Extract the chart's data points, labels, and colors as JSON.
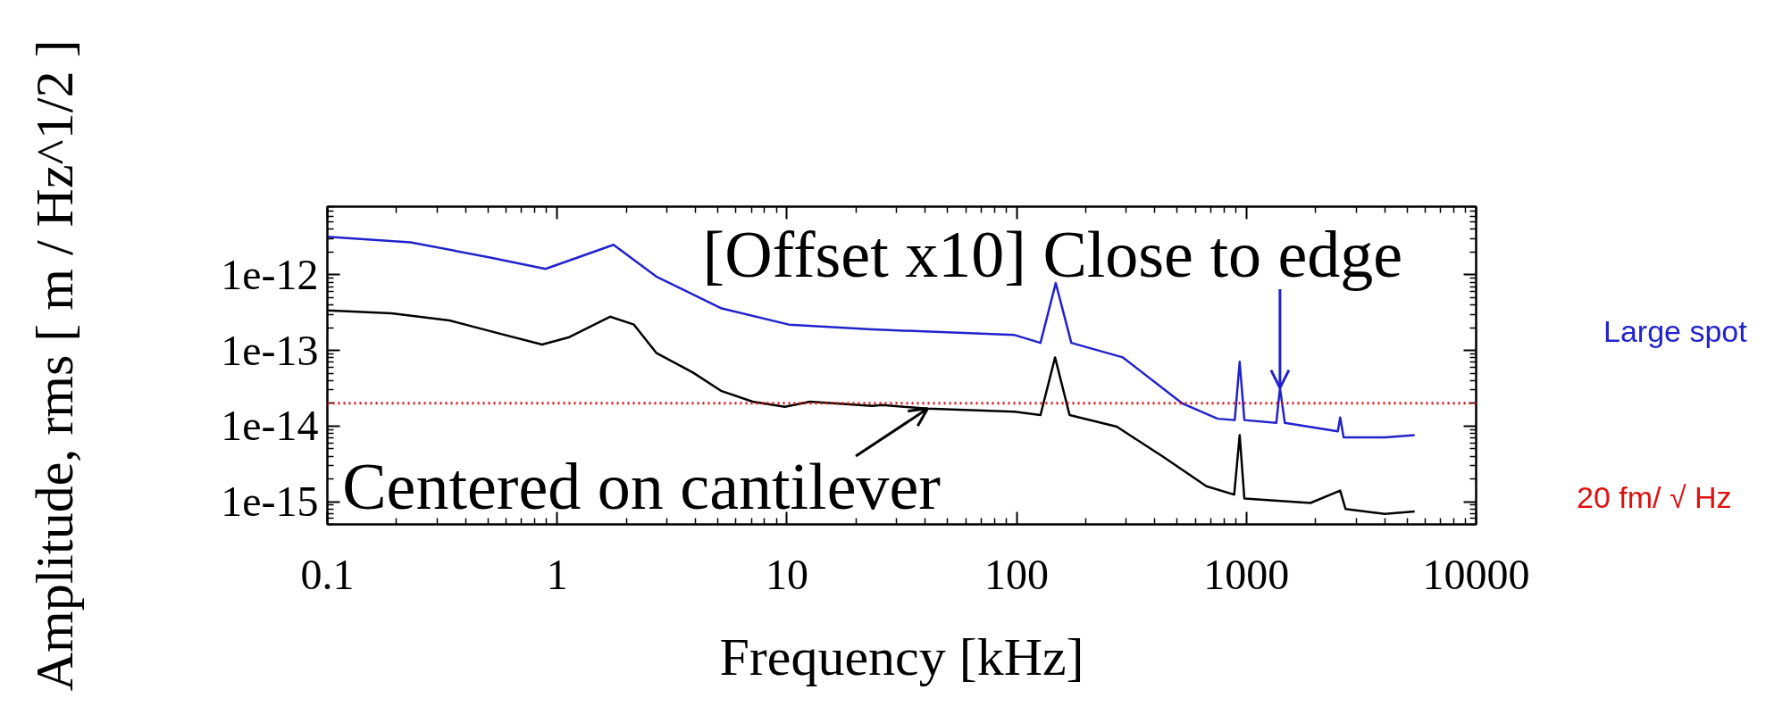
{
  "chart_data": {
    "type": "line",
    "xlabel": "Frequency [kHz]",
    "ylabel": "Amplitude, rms [ m / Hz^1/2 ]",
    "log": "xy",
    "xlim": [
      0.1,
      10000
    ],
    "xticks": [
      0.1,
      1,
      10,
      100,
      1000,
      10000
    ],
    "ylim": [
      5e-16,
      8e-12
    ],
    "yticks": [
      {
        "value": 1e-15,
        "label": "1e-15"
      },
      {
        "value": 1e-14,
        "label": "1e-14"
      },
      {
        "value": 1e-13,
        "label": "1e-13"
      },
      {
        "value": 1e-12,
        "label": "1e-12"
      }
    ],
    "grid": false,
    "line_style": "solid",
    "marker": "none",
    "series": [
      {
        "name": "Large spot",
        "color": "#2222cc",
        "x": [
          0.1,
          0.23,
          0.51,
          0.89,
          1.76,
          2.7,
          5.2,
          10.2,
          23.5,
          98,
          127,
          148,
          173,
          290,
          525,
          750,
          890,
          935,
          980,
          1350,
          1400,
          1470,
          2500,
          2560,
          2650,
          4000,
          5400
        ],
        "values": [
          3.2e-12,
          2.7e-12,
          1.7e-12,
          1.2e-12,
          2.5e-12,
          9.5e-13,
          3.6e-13,
          2.2e-13,
          1.9e-13,
          1.6e-13,
          1.26e-13,
          7.8e-13,
          1.26e-13,
          8.1e-14,
          2e-14,
          1.25e-14,
          1.2e-14,
          7.1e-14,
          1.2e-14,
          1.1e-14,
          3.2e-14,
          1.1e-14,
          8.5e-15,
          1.3e-14,
          7.1e-15,
          7.1e-15,
          7.6e-15
        ]
      },
      {
        "color": "#000000",
        "x": [
          0.1,
          0.19,
          0.34,
          0.55,
          0.86,
          1.13,
          1.7,
          2.16,
          2.7,
          3.9,
          5.2,
          7.1,
          9.8,
          12.6,
          23.5,
          26,
          41,
          98,
          127,
          147,
          170,
          273,
          430,
          670,
          885,
          935,
          980,
          1900,
          2560,
          2700,
          4000,
          5400
        ],
        "values": [
          3.4e-13,
          3.1e-13,
          2.5e-13,
          1.7e-13,
          1.2e-13,
          1.5e-13,
          2.8e-13,
          2.2e-13,
          9.3e-14,
          5.1e-14,
          2.9e-14,
          2.1e-14,
          1.8e-14,
          2.1e-14,
          1.85e-14,
          1.9e-14,
          1.7e-14,
          1.55e-14,
          1.4e-14,
          8.1e-14,
          1.4e-14,
          9.8e-15,
          4e-15,
          1.6e-15,
          1.24e-15,
          7.6e-15,
          1.1e-15,
          9.6e-16,
          1.4e-15,
          8e-16,
          6.9e-16,
          7.4e-16
        ]
      }
    ],
    "ref_lines": [
      {
        "axis": "y",
        "value": 2e-14,
        "label": "20 fm/ √ Hz",
        "color": "#dd1111",
        "line_style": "dotted"
      }
    ],
    "annotations": [
      {
        "text": "[Offset x10] Close to edge",
        "x": 1400,
        "y": 3.2e-14
      },
      {
        "text": "Centered on cantilever",
        "x": 41,
        "y": 1.7e-14
      }
    ]
  }
}
